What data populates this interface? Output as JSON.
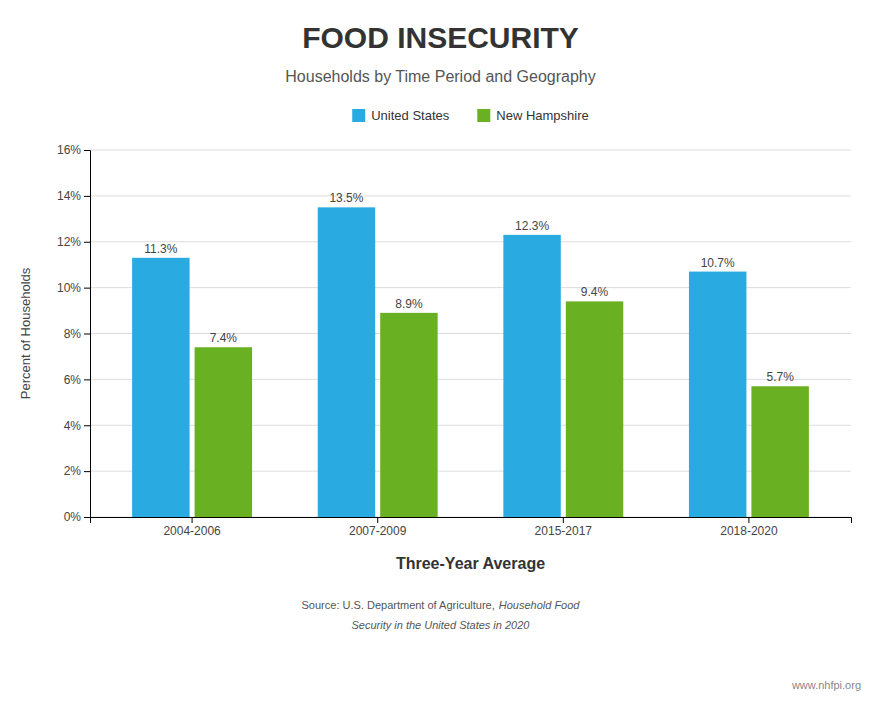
{
  "chart_data": {
    "type": "bar",
    "title": "FOOD INSECURITY",
    "subtitle": "Households by Time Period and Geography",
    "x_label": "Three-Year Average",
    "y_label": "Percent of Households",
    "categories": [
      "2004-2006",
      "2007-2009",
      "2015-2017",
      "2018-2020"
    ],
    "series": [
      {
        "name": "United States",
        "color": "#29ABE2",
        "values": [
          11.3,
          13.5,
          12.3,
          10.7
        ],
        "value_labels": [
          "11.3%",
          "13.5%",
          "12.3%",
          "10.7%"
        ]
      },
      {
        "name": "New Hampshire",
        "color": "#6AB023",
        "values": [
          7.4,
          8.9,
          9.4,
          5.7
        ],
        "value_labels": [
          "7.4%",
          "8.9%",
          "9.4%",
          "5.7%"
        ]
      }
    ],
    "ylim": [
      0,
      16
    ],
    "yticks": [
      {
        "value": 0,
        "label": "0%"
      },
      {
        "value": 2,
        "label": "2%"
      },
      {
        "value": 4,
        "label": "4%"
      },
      {
        "value": 6,
        "label": "6%"
      },
      {
        "value": 8,
        "label": "8%"
      },
      {
        "value": 10,
        "label": "10%"
      },
      {
        "value": 12,
        "label": "12%"
      },
      {
        "value": 14,
        "label": "14%"
      },
      {
        "value": 16,
        "label": "16%"
      }
    ],
    "grid": true,
    "legend": "top",
    "data_labels": true,
    "source": [
      "Source: U.S. Department of Agriculture,",
      "Household Food",
      "Security in the United States in 2020"
    ],
    "watermark": "www.nhfpi.org"
  }
}
